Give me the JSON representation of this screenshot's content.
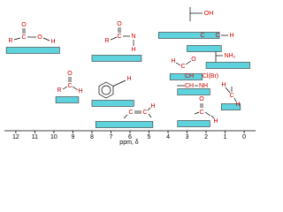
{
  "chart_data": {
    "type": "range",
    "xlabel": "ppm, δ",
    "xlim": [
      12.6,
      -0.6
    ],
    "xticks": [
      12,
      11,
      10,
      9,
      8,
      7,
      6,
      5,
      4,
      3,
      2,
      1,
      0
    ],
    "color": "#5fd3dd",
    "items": [
      {
        "labels": [
          "R",
          "C",
          "O",
          "O",
          "H"
        ],
        "range": [
          12.5,
          9.7
        ]
      },
      {
        "labels": [
          "R",
          "C",
          "O",
          "N",
          "H"
        ],
        "range": [
          8.0,
          5.4
        ]
      },
      {
        "labels": [
          "R",
          "C",
          "O",
          "H"
        ],
        "range": [
          9.9,
          8.7
        ]
      },
      {
        "labels": [
          "H"
        ],
        "range": [
          8.0,
          5.8
        ]
      },
      {
        "labels": [
          "C",
          "C",
          "H"
        ],
        "range": [
          7.8,
          4.8
        ]
      },
      {
        "labels": [
          "OH"
        ],
        "range": [
          4.5,
          1.3
        ]
      },
      {
        "labels": [
          "C",
          "C",
          "H"
        ],
        "range": [
          3.0,
          1.2
        ]
      },
      {
        "labels": [
          "NH₂"
        ],
        "range": [
          2.0,
          -0.3
        ]
      },
      {
        "labels": [
          "H",
          "C",
          "O"
        ],
        "range": [
          3.9,
          2.2
        ]
      },
      {
        "labels": [
          "CH",
          "Cl(Br)",
          "CH",
          "NH"
        ],
        "range": [
          3.5,
          1.8
        ]
      },
      {
        "labels": [
          "O",
          "C",
          "H"
        ],
        "range": [
          3.5,
          1.8
        ]
      },
      {
        "labels": [
          "H",
          "C",
          "H"
        ],
        "range": [
          1.2,
          0.2
        ]
      }
    ]
  }
}
